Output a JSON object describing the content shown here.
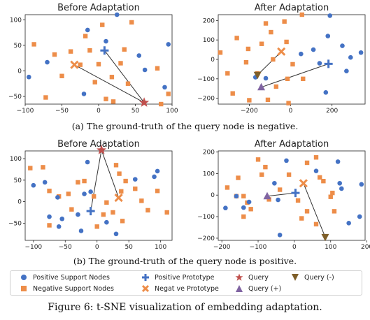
{
  "colors": {
    "positive": "#4472C4",
    "negative": "#ED8D49",
    "query": "#C0504D",
    "query_plus": "#8064A2",
    "query_minus": "#7F5F2A",
    "line": "#333333"
  },
  "captions": {
    "a": "(a) The ground-truth of the query node is negative.",
    "b": "(b) The ground-truth of the query node is positive.",
    "figure": "Figure 6: t-SNE visualization of embedding adaptation."
  },
  "legend": {
    "positive_support": "Positive Support Nodes",
    "negative_support": "Negative Support Nodes",
    "positive_prototype": "Positive Prototype",
    "negative_prototype": "Negat ve Prototype",
    "query": "Query",
    "query_plus": "Query (+)",
    "query_minus": "Query (-)"
  },
  "chart_data": [
    {
      "type": "scatter",
      "title": "Before Adaptation",
      "xlim": [
        -100,
        100
      ],
      "ylim": [
        -65,
        110
      ],
      "xticks": [
        -100,
        -50,
        0,
        50,
        100
      ],
      "yticks": [
        -50,
        0,
        50,
        100
      ],
      "positive_support": [
        [
          -95,
          -12
        ],
        [
          -70,
          17
        ],
        [
          -15,
          80
        ],
        [
          10,
          58
        ],
        [
          -20,
          -45
        ],
        [
          25,
          110
        ],
        [
          55,
          30
        ],
        [
          63,
          2
        ],
        [
          90,
          -32
        ],
        [
          95,
          52
        ]
      ],
      "negative_support": [
        [
          -88,
          52
        ],
        [
          -72,
          -52
        ],
        [
          -60,
          32
        ],
        [
          -50,
          -10
        ],
        [
          -38,
          38
        ],
        [
          -25,
          12
        ],
        [
          -18,
          68
        ],
        [
          -12,
          40
        ],
        [
          -5,
          -22
        ],
        [
          0,
          13
        ],
        [
          5,
          90
        ],
        [
          18,
          -12
        ],
        [
          20,
          -60
        ],
        [
          30,
          15
        ],
        [
          35,
          42
        ],
        [
          40,
          -25
        ],
        [
          45,
          95
        ],
        [
          80,
          5
        ],
        [
          85,
          -65
        ],
        [
          95,
          -45
        ],
        [
          10,
          -55
        ]
      ],
      "positive_prototype": [
        8,
        40
      ],
      "negative_prototype": [
        -33,
        12
      ],
      "query": [
        62,
        -62
      ]
    },
    {
      "type": "scatter",
      "title": "After Adaptation",
      "xlim": [
        -350,
        360
      ],
      "ylim": [
        -230,
        230
      ],
      "xticks": [
        -200,
        0,
        200
      ],
      "yticks": [
        -200,
        -100,
        0,
        100,
        200
      ],
      "positive_support": [
        [
          -170,
          -92
        ],
        [
          -120,
          -97
        ],
        [
          50,
          28
        ],
        [
          110,
          50
        ],
        [
          140,
          -20
        ],
        [
          170,
          -170
        ],
        [
          180,
          120
        ],
        [
          190,
          225
        ],
        [
          250,
          70
        ],
        [
          270,
          -60
        ],
        [
          290,
          10
        ],
        [
          340,
          35
        ]
      ],
      "negative_support": [
        [
          -340,
          35
        ],
        [
          -305,
          -72
        ],
        [
          -260,
          110
        ],
        [
          -215,
          -15
        ],
        [
          -205,
          54
        ],
        [
          -160,
          -72
        ],
        [
          -140,
          80
        ],
        [
          -120,
          185
        ],
        [
          -95,
          140
        ],
        [
          -85,
          0
        ],
        [
          -70,
          -140
        ],
        [
          -30,
          195
        ],
        [
          -20,
          90
        ],
        [
          -15,
          -100
        ],
        [
          10,
          -25
        ],
        [
          55,
          230
        ],
        [
          60,
          -100
        ],
        [
          -280,
          -175
        ],
        [
          -200,
          -210
        ],
        [
          -110,
          -208
        ],
        [
          -10,
          -225
        ]
      ],
      "positive_prototype": [
        183,
        -23
      ],
      "negative_prototype": [
        -45,
        40
      ],
      "query_plus": [
        -142,
        -143
      ],
      "query_minus": [
        -160,
        -80
      ]
    },
    {
      "type": "scatter",
      "title": "Before Adaptation",
      "xlim": [
        -113,
        118
      ],
      "ylim": [
        -90,
        118
      ],
      "xticks": [
        -100,
        -50,
        0,
        50,
        100
      ],
      "yticks": [
        -50,
        0,
        50,
        100
      ],
      "positive_support": [
        [
          -100,
          38
        ],
        [
          -82,
          45
        ],
        [
          -75,
          -35
        ],
        [
          -62,
          10
        ],
        [
          -60,
          -58
        ],
        [
          -55,
          -40
        ],
        [
          -30,
          -30
        ],
        [
          -25,
          -68
        ],
        [
          -20,
          18
        ],
        [
          -10,
          23
        ],
        [
          -15,
          92
        ],
        [
          15,
          -48
        ],
        [
          30,
          -75
        ],
        [
          60,
          52
        ],
        [
          90,
          58
        ],
        [
          95,
          71
        ]
      ],
      "negative_support": [
        [
          -105,
          78
        ],
        [
          -85,
          80
        ],
        [
          -75,
          25
        ],
        [
          -60,
          12
        ],
        [
          -45,
          18
        ],
        [
          -40,
          -18
        ],
        [
          -30,
          45
        ],
        [
          -20,
          48
        ],
        [
          -5,
          12
        ],
        [
          0,
          -58
        ],
        [
          10,
          -30
        ],
        [
          15,
          -2
        ],
        [
          25,
          -25
        ],
        [
          30,
          85
        ],
        [
          35,
          65
        ],
        [
          38,
          24
        ],
        [
          40,
          -45
        ],
        [
          45,
          48
        ],
        [
          60,
          30
        ],
        [
          70,
          2
        ],
        [
          80,
          -20
        ],
        [
          95,
          25
        ],
        [
          110,
          -25
        ],
        [
          -75,
          -55
        ]
      ],
      "positive_prototype": [
        -10,
        -22
      ],
      "negative_prototype": [
        34,
        9
      ],
      "query": [
        7,
        120
      ]
    },
    {
      "type": "scatter",
      "title": "After Adaptation",
      "xlim": [
        -210,
        195
      ],
      "ylim": [
        -210,
        205
      ],
      "xticks": [
        -200,
        -100,
        0,
        100,
        200
      ],
      "yticks": [
        -200,
        -100,
        0,
        100,
        200
      ],
      "positive_support": [
        [
          -190,
          -60
        ],
        [
          -160,
          -5
        ],
        [
          -140,
          -58
        ],
        [
          -125,
          -32
        ],
        [
          -55,
          55
        ],
        [
          -45,
          -22
        ],
        [
          -40,
          -185
        ],
        [
          -22,
          160
        ],
        [
          60,
          112
        ],
        [
          120,
          155
        ],
        [
          125,
          55
        ],
        [
          130,
          30
        ],
        [
          150,
          -130
        ],
        [
          180,
          -100
        ],
        [
          185,
          50
        ]
      ],
      "negative_support": [
        [
          -185,
          35
        ],
        [
          -160,
          -5
        ],
        [
          -140,
          -100
        ],
        [
          -140,
          -5
        ],
        [
          -120,
          -65
        ],
        [
          -100,
          165
        ],
        [
          -90,
          95
        ],
        [
          -80,
          130
        ],
        [
          -70,
          -20
        ],
        [
          -40,
          25
        ],
        [
          -15,
          95
        ],
        [
          10,
          -25
        ],
        [
          20,
          -108
        ],
        [
          35,
          150
        ],
        [
          35,
          -75
        ],
        [
          60,
          -135
        ],
        [
          70,
          82
        ],
        [
          80,
          65
        ],
        [
          100,
          -8
        ],
        [
          105,
          10
        ],
        [
          110,
          -75
        ],
        [
          60,
          175
        ],
        [
          -155,
          80
        ],
        [
          -130,
          -35
        ]
      ],
      "positive_prototype": [
        3,
        10
      ],
      "negative_prototype": [
        25,
        55
      ],
      "query_plus": [
        -75,
        -5
      ],
      "query_minus": [
        85,
        -195
      ]
    }
  ]
}
